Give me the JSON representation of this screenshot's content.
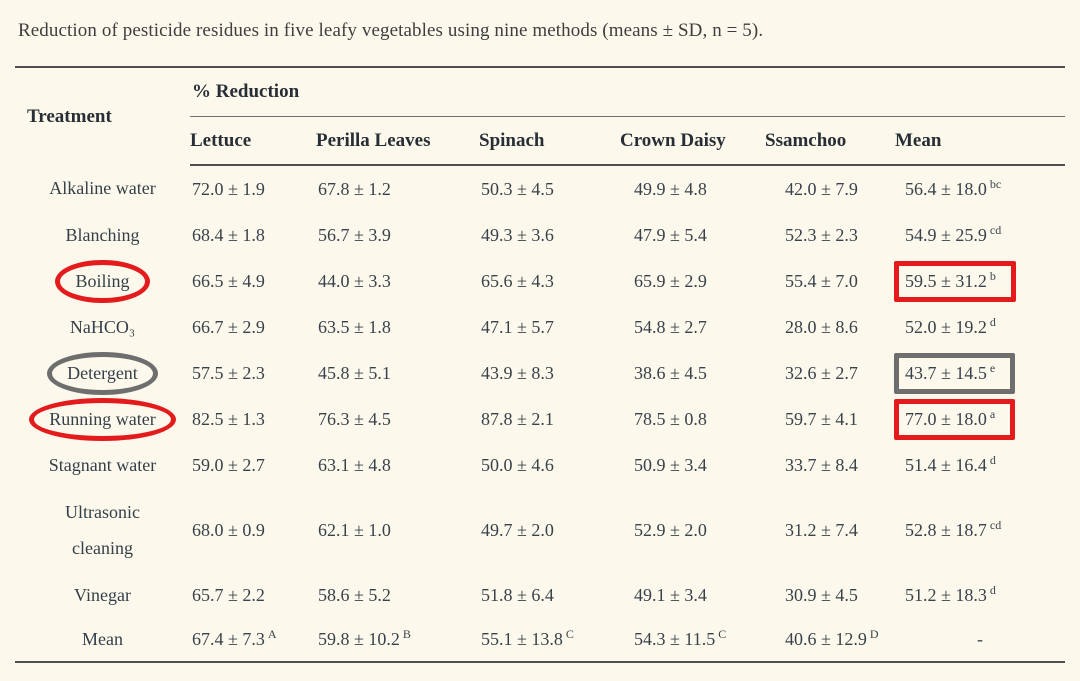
{
  "caption": "Reduction of pesticide residues in five leafy vegetables using nine methods (means ± SD, n = 5).",
  "table": {
    "header": {
      "treatment": "Treatment",
      "group": "% Reduction",
      "columns": [
        "Lettuce",
        "Perilla Leaves",
        "Spinach",
        "Crown Daisy",
        "Ssamchoo",
        "Mean"
      ]
    },
    "rows": [
      {
        "treatment": "Alkaline water",
        "circle": null,
        "box": null,
        "values": [
          "72.0 ± 1.9",
          "67.8 ± 1.2",
          "50.3 ± 4.5",
          "49.9 ± 4.8",
          "42.0 ± 7.9",
          "56.4 ± 18.0^bc"
        ]
      },
      {
        "treatment": "Blanching",
        "circle": null,
        "box": null,
        "values": [
          "68.4 ± 1.8",
          "56.7 ± 3.9",
          "49.3 ± 3.6",
          "47.9 ± 5.4",
          "52.3 ± 2.3",
          "54.9 ± 25.9^cd"
        ]
      },
      {
        "treatment": "Boiling",
        "circle": "red",
        "box": "red",
        "values": [
          "66.5 ± 4.9",
          "44.0 ± 3.3",
          "65.6 ± 4.3",
          "65.9 ± 2.9",
          "55.4 ± 7.0",
          "59.5 ± 31.2^b"
        ]
      },
      {
        "treatment": "NaHCO₃",
        "circle": null,
        "box": null,
        "values": [
          "66.7 ± 2.9",
          "63.5 ± 1.8",
          "47.1 ± 5.7",
          "54.8 ± 2.7",
          "28.0 ± 8.6",
          "52.0 ± 19.2^d"
        ]
      },
      {
        "treatment": "Detergent",
        "circle": "gray",
        "box": "gray",
        "values": [
          "57.5 ± 2.3",
          "45.8 ± 5.1",
          "43.9 ± 8.3",
          "38.6 ± 4.5",
          "32.6 ± 2.7",
          "43.7 ± 14.5^e"
        ]
      },
      {
        "treatment": "Running water",
        "circle": "red",
        "box": "red",
        "values": [
          "82.5 ± 1.3",
          "76.3 ± 4.5",
          "87.8 ± 2.1",
          "78.5 ± 0.8",
          "59.7 ± 4.1",
          "77.0 ± 18.0^a"
        ]
      },
      {
        "treatment": "Stagnant water",
        "circle": null,
        "box": null,
        "values": [
          "59.0 ± 2.7",
          "63.1 ± 4.8",
          "50.0 ± 4.6",
          "50.9 ± 3.4",
          "33.7 ± 8.4",
          "51.4 ± 16.4^d"
        ]
      },
      {
        "treatment": "Ultrasonic\ncleaning",
        "circle": null,
        "box": null,
        "tall": true,
        "values": [
          "68.0 ± 0.9",
          "62.1 ± 1.0",
          "49.7 ± 2.0",
          "52.9 ± 2.0",
          "31.2 ± 7.4",
          "52.8 ± 18.7^cd"
        ]
      },
      {
        "treatment": "Vinegar",
        "circle": null,
        "box": null,
        "values": [
          "65.7 ± 2.2",
          "58.6 ± 5.2",
          "51.8 ± 6.4",
          "49.1 ± 3.4",
          "30.9 ± 4.5",
          "51.2 ± 18.3^d"
        ]
      },
      {
        "treatment": "Mean",
        "circle": null,
        "box": null,
        "footer": true,
        "values": [
          "67.4 ± 7.3^A",
          "59.8 ± 10.2^B",
          "55.1 ± 13.8^C",
          "54.3 ± 11.5^C",
          "40.6 ± 12.9^D",
          "-"
        ]
      }
    ]
  },
  "annotations": {
    "colors": {
      "red": "#E31B1C",
      "gray": "#6E6E6E"
    }
  },
  "theme": {
    "background": "#FCF9EC",
    "text": "#39424B",
    "rule": "#4F4F4F"
  }
}
